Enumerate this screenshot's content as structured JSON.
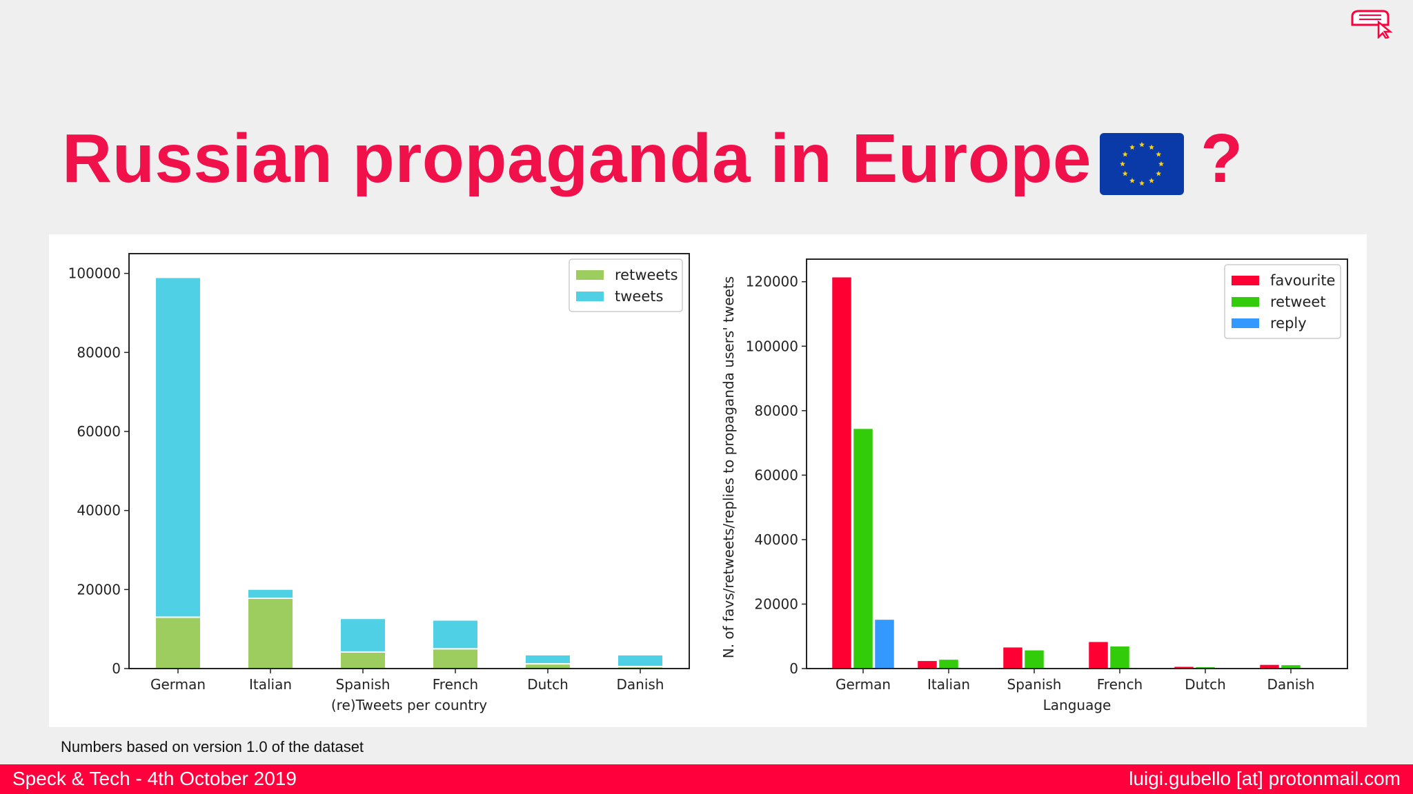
{
  "slide": {
    "title": "Russian propaganda in Europe",
    "title_suffix": "?",
    "note": "Numbers based on version 1.0 of the dataset",
    "footer_left": "Speck & Tech - 4th October 2019",
    "footer_right": "luigi.gubello [at] protonmail.com",
    "flag_icon": "eu-flag-icon",
    "logo_icon": "red-bread-cursor-logo",
    "colors": {
      "accent": "#ff003c",
      "title": "#f0104a"
    }
  },
  "chart_data": [
    {
      "type": "bar",
      "stacked": true,
      "title": "",
      "xlabel": "(re)Tweets per country",
      "ylabel": "",
      "categories": [
        "German",
        "Italian",
        "Spanish",
        "French",
        "Dutch",
        "Danish"
      ],
      "ylim": [
        0,
        105000
      ],
      "yticks": [
        0,
        20000,
        40000,
        60000,
        80000,
        100000
      ],
      "series": [
        {
          "name": "retweets",
          "color": "#9dcc5f",
          "values": [
            13000,
            17800,
            4200,
            5000,
            1200,
            500
          ]
        },
        {
          "name": "tweets",
          "color": "#4fd0e4",
          "values": [
            86000,
            2300,
            8500,
            7300,
            2300,
            3000
          ]
        }
      ],
      "legend": "top-right"
    },
    {
      "type": "bar",
      "stacked": false,
      "title": "",
      "xlabel": "Language",
      "ylabel": "N. of favs/retweets/replies to propaganda users' tweets",
      "categories": [
        "German",
        "Italian",
        "Spanish",
        "French",
        "Dutch",
        "Danish"
      ],
      "ylim": [
        0,
        127000
      ],
      "yticks": [
        0,
        20000,
        40000,
        60000,
        80000,
        100000,
        120000
      ],
      "series": [
        {
          "name": "favourite",
          "color": "#ff0033",
          "values": [
            121500,
            2500,
            6700,
            8400,
            700,
            1300
          ]
        },
        {
          "name": "retweet",
          "color": "#33cc0a",
          "values": [
            74500,
            2900,
            5800,
            7000,
            600,
            1200
          ]
        },
        {
          "name": "reply",
          "color": "#3399ff",
          "values": [
            15300,
            100,
            300,
            300,
            50,
            50
          ]
        }
      ],
      "legend": "top-right"
    }
  ]
}
